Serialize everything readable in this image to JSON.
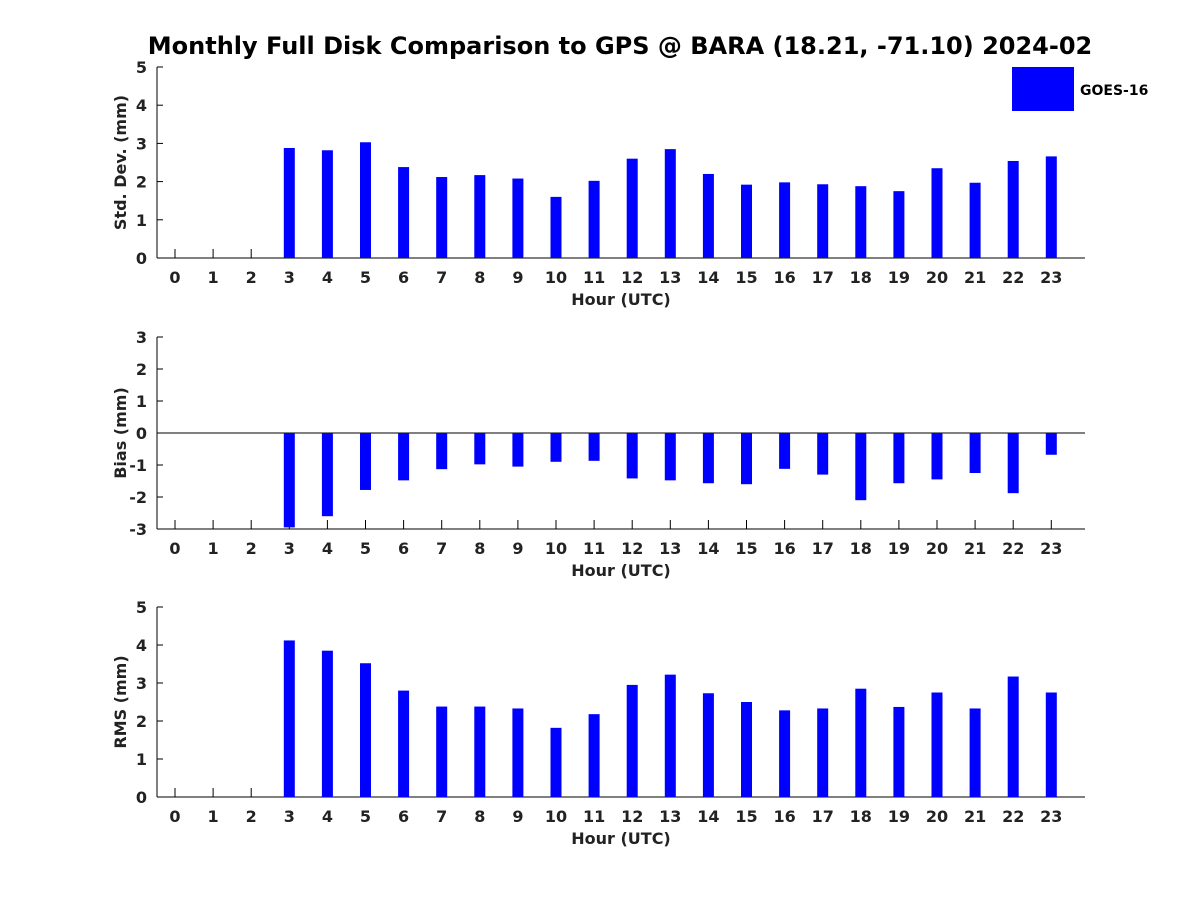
{
  "title": "Monthly Full Disk Comparison to GPS @ BARA (18.21, -71.10) 2024-02",
  "legend": {
    "label": "GOES-16",
    "color": "#0000ff",
    "placement": "top-right"
  },
  "colors": {
    "bar": "#0000ff",
    "axis": "#000000"
  },
  "chart_data": [
    {
      "type": "bar",
      "series_name": "GOES-16",
      "xlabel": "Hour (UTC)",
      "ylabel": "Std. Dev. (mm)",
      "ylim": [
        0,
        5
      ],
      "yticks": [
        0,
        1,
        2,
        3,
        4,
        5
      ],
      "categories": [
        0,
        1,
        2,
        3,
        4,
        5,
        6,
        7,
        8,
        9,
        10,
        11,
        12,
        13,
        14,
        15,
        16,
        17,
        18,
        19,
        20,
        21,
        22,
        23
      ],
      "values": [
        null,
        null,
        null,
        2.88,
        2.82,
        3.03,
        2.38,
        2.12,
        2.17,
        2.08,
        1.6,
        2.02,
        2.6,
        2.85,
        2.2,
        1.92,
        1.98,
        1.93,
        1.88,
        1.75,
        2.35,
        1.97,
        2.54,
        2.66
      ]
    },
    {
      "type": "bar",
      "series_name": "GOES-16",
      "xlabel": "Hour (UTC)",
      "ylabel": "Bias (mm)",
      "ylim": [
        -3,
        3
      ],
      "yticks": [
        -3,
        -2,
        -1,
        0,
        1,
        2,
        3
      ],
      "categories": [
        0,
        1,
        2,
        3,
        4,
        5,
        6,
        7,
        8,
        9,
        10,
        11,
        12,
        13,
        14,
        15,
        16,
        17,
        18,
        19,
        20,
        21,
        22,
        23
      ],
      "values": [
        null,
        null,
        null,
        -2.95,
        -2.6,
        -1.78,
        -1.48,
        -1.13,
        -0.98,
        -1.05,
        -0.9,
        -0.87,
        -1.42,
        -1.48,
        -1.57,
        -1.6,
        -1.12,
        -1.3,
        -2.1,
        -1.57,
        -1.45,
        -1.25,
        -1.88,
        -0.68
      ]
    },
    {
      "type": "bar",
      "series_name": "GOES-16",
      "xlabel": "Hour (UTC)",
      "ylabel": "RMS (mm)",
      "ylim": [
        0,
        5
      ],
      "yticks": [
        0,
        1,
        2,
        3,
        4,
        5
      ],
      "categories": [
        0,
        1,
        2,
        3,
        4,
        5,
        6,
        7,
        8,
        9,
        10,
        11,
        12,
        13,
        14,
        15,
        16,
        17,
        18,
        19,
        20,
        21,
        22,
        23
      ],
      "values": [
        null,
        null,
        null,
        4.12,
        3.85,
        3.52,
        2.8,
        2.38,
        2.38,
        2.33,
        1.82,
        2.18,
        2.95,
        3.22,
        2.73,
        2.5,
        2.28,
        2.33,
        2.85,
        2.37,
        2.75,
        2.33,
        3.17,
        2.75
      ]
    }
  ]
}
